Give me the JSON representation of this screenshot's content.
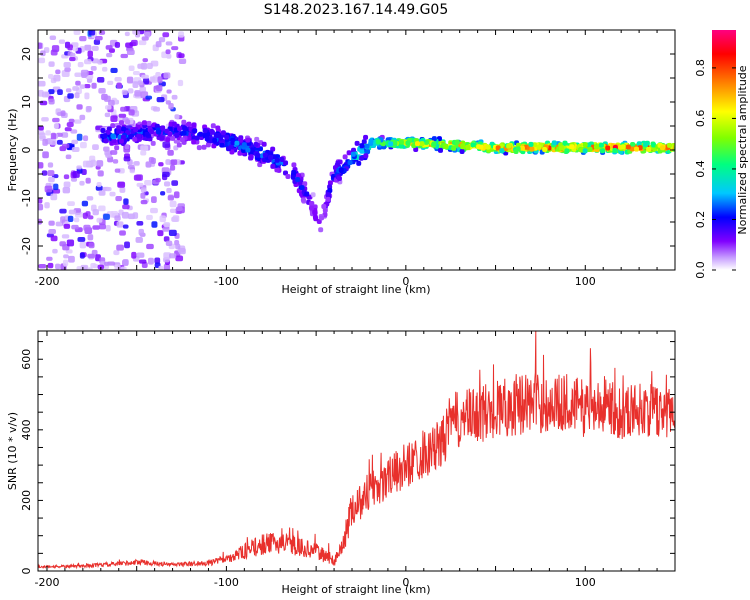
{
  "title": "S148.2023.167.14.49.G05",
  "chart_data": [
    {
      "type": "heatmap",
      "name": "spectrogram",
      "xlabel": "Height of straight line (km)",
      "ylabel": "Frequency (Hz)",
      "xlim": [
        -205,
        150
      ],
      "ylim": [
        -25,
        25
      ],
      "xticks": [
        -200,
        -100,
        0,
        100
      ],
      "yticks": [
        -20,
        -10,
        0,
        10,
        20
      ],
      "colorbar": {
        "label": "Normalized spectral amplitude",
        "range": [
          0,
          0.95
        ],
        "ticks": [
          0.0,
          0.2,
          0.4,
          0.6,
          0.8
        ],
        "colormap": [
          "#ffffff",
          "#c8a0ff",
          "#8000ff",
          "#0000ff",
          "#00c8ff",
          "#00ff80",
          "#80ff00",
          "#ffff00",
          "#ff8000",
          "#ff0000",
          "#ff0080"
        ]
      },
      "features": {
        "noise_region_x": [
          -205,
          -125
        ],
        "signal_trace": [
          {
            "x": -160,
            "freq": 3.0,
            "amp": 0.35
          },
          {
            "x": -140,
            "freq": 4.0,
            "amp": 0.3
          },
          {
            "x": -120,
            "freq": 3.5,
            "amp": 0.3
          },
          {
            "x": -100,
            "freq": 2.0,
            "amp": 0.35
          },
          {
            "x": -85,
            "freq": 0.0,
            "amp": 0.35
          },
          {
            "x": -70,
            "freq": -2.5,
            "amp": 0.35
          },
          {
            "x": -60,
            "freq": -6.0,
            "amp": 0.3
          },
          {
            "x": -52,
            "freq": -12.0,
            "amp": 0.25
          },
          {
            "x": -48,
            "freq": -16.0,
            "amp": 0.2
          },
          {
            "x": -40,
            "freq": -5.0,
            "amp": 0.3
          },
          {
            "x": -30,
            "freq": -2.0,
            "amp": 0.4
          },
          {
            "x": -20,
            "freq": 1.5,
            "amp": 0.5
          },
          {
            "x": 0,
            "freq": 1.5,
            "amp": 0.7
          },
          {
            "x": 50,
            "freq": 0.5,
            "amp": 0.8
          },
          {
            "x": 100,
            "freq": 0.5,
            "amp": 0.85
          },
          {
            "x": 150,
            "freq": 0.5,
            "amp": 0.8
          }
        ]
      }
    },
    {
      "type": "line",
      "name": "snr",
      "xlabel": "Height of straight line (km)",
      "ylabel": "SNR (10 * v/v)",
      "xlim": [
        -205,
        150
      ],
      "ylim": [
        0,
        680
      ],
      "xticks": [
        -200,
        -100,
        0,
        100
      ],
      "yticks": [
        0,
        200,
        400,
        600
      ],
      "color": "#e8302c",
      "series": [
        {
          "name": "SNR",
          "x": [
            -205,
            -180,
            -160,
            -150,
            -130,
            -110,
            -100,
            -90,
            -80,
            -70,
            -60,
            -50,
            -40,
            -35,
            -30,
            -25,
            -20,
            -10,
            0,
            10,
            20,
            25,
            30,
            40,
            50,
            60,
            70,
            80,
            90,
            100,
            110,
            120,
            130,
            140,
            150
          ],
          "y": [
            12,
            14,
            20,
            25,
            18,
            22,
            35,
            55,
            75,
            80,
            70,
            55,
            30,
            70,
            180,
            200,
            230,
            260,
            300,
            330,
            360,
            420,
            430,
            440,
            460,
            470,
            480,
            470,
            480,
            460,
            470,
            450,
            460,
            450,
            460
          ],
          "spread": [
            6,
            8,
            12,
            14,
            10,
            14,
            22,
            40,
            55,
            55,
            50,
            40,
            30,
            60,
            90,
            100,
            110,
            110,
            120,
            120,
            130,
            150,
            150,
            150,
            160,
            160,
            160,
            150,
            150,
            150,
            140,
            140,
            140,
            140,
            140
          ]
        }
      ]
    }
  ]
}
